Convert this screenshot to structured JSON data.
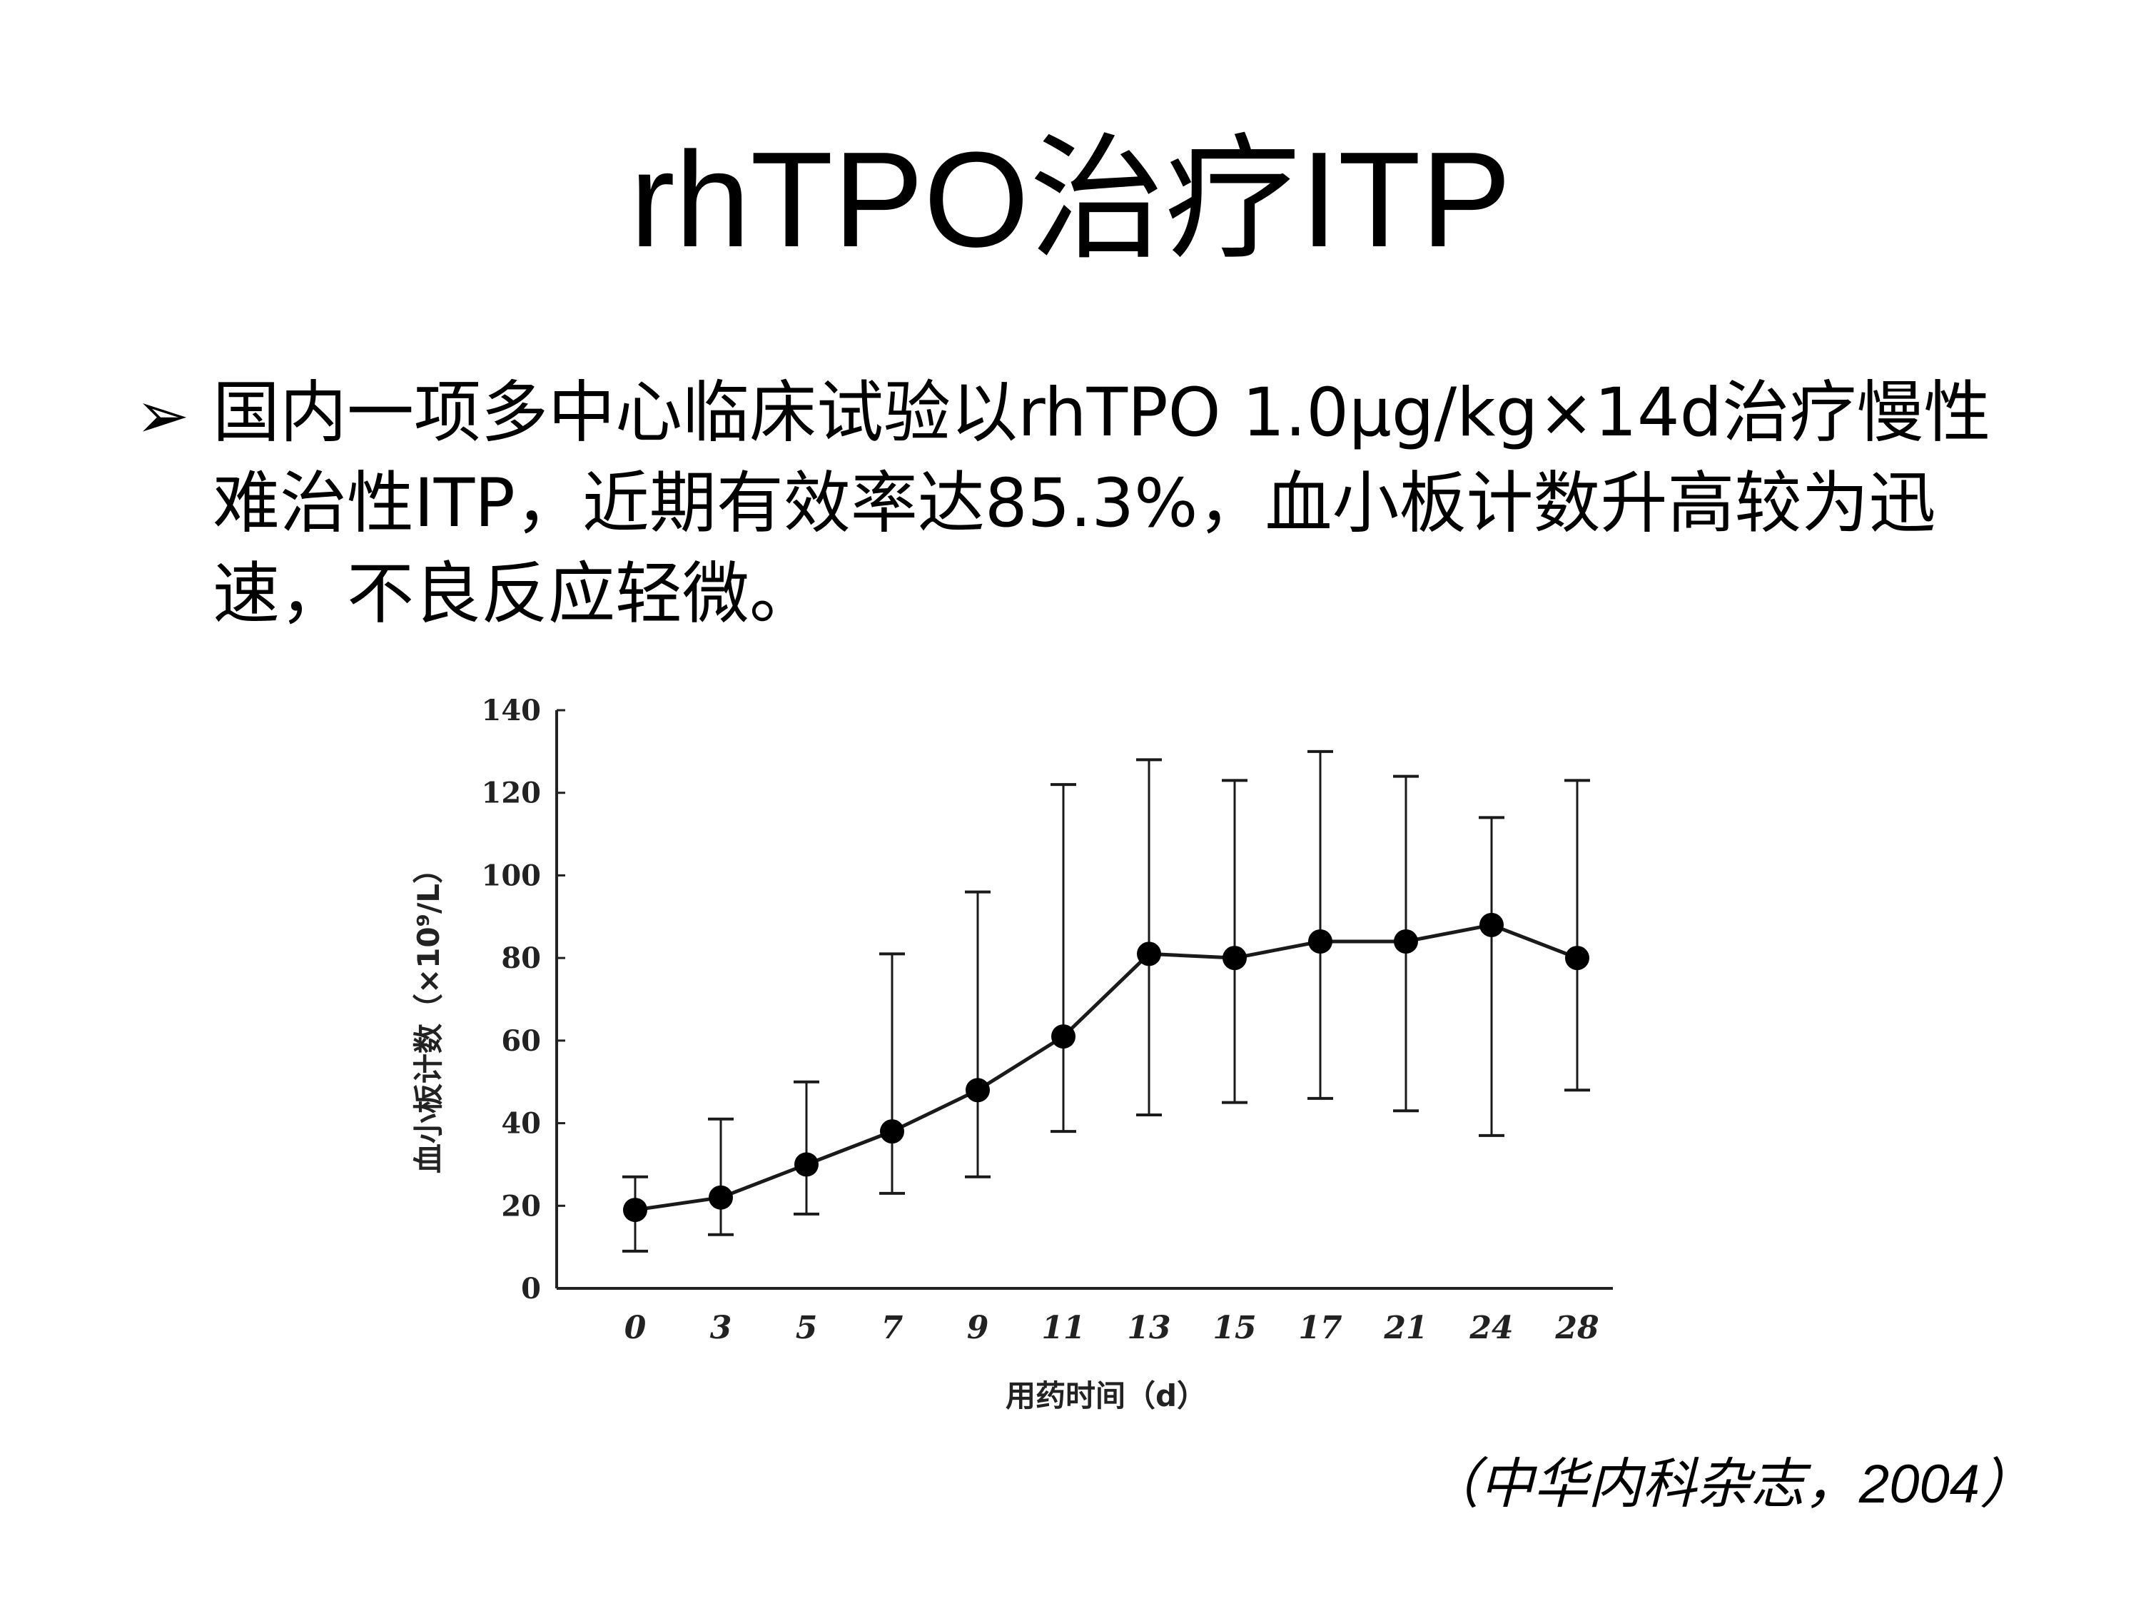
{
  "slide": {
    "title": "rhTPO治疗ITP",
    "bullet_marker": "➢",
    "bullet_text": "国内一项多中心临床试验以rhTPO 1.0μg/kg×14d治疗慢性难治性ITP，近期有效率达85.3%，血小板计数升高较为迅速，不良反应轻微。",
    "citation": "（中华内科杂志，2004）"
  },
  "chart_data": {
    "type": "line",
    "xlabel": "用药时间（d）",
    "ylabel": "血小板计数（×10⁹/L）",
    "categories": [
      "0",
      "3",
      "5",
      "7",
      "9",
      "11",
      "13",
      "15",
      "17",
      "21",
      "24",
      "28"
    ],
    "y_ticks": [
      "0",
      "20",
      "40",
      "60",
      "80",
      "100",
      "120",
      "140"
    ],
    "ylim": [
      0,
      140
    ],
    "grid": false,
    "series": [
      {
        "values": [
          19,
          22,
          30,
          38,
          48,
          61,
          81,
          80,
          84,
          84,
          88,
          80
        ],
        "error_upper": [
          27,
          41,
          50,
          81,
          96,
          122,
          128,
          123,
          130,
          124,
          114,
          123
        ],
        "error_lower": [
          9,
          13,
          18,
          23,
          27,
          38,
          42,
          45,
          46,
          43,
          37,
          48
        ]
      }
    ],
    "colors": {
      "line": "#1a1a1a",
      "marker": "#000000"
    }
  }
}
